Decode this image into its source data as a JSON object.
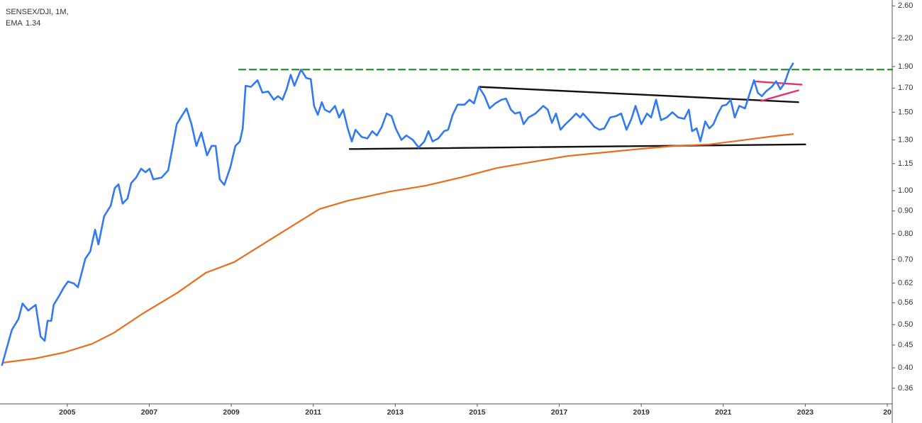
{
  "chart_data": {
    "type": "line",
    "title": "SENSEX/DJI, 1M,",
    "log_scale": true,
    "xlim": [
      2003.36,
      2025.12
    ],
    "ylim": [
      0.332,
      2.68
    ],
    "xticks": [
      2005,
      2007,
      2009,
      2011,
      2013,
      2015,
      2017,
      2019,
      2021,
      2023,
      {
        "value": 2025,
        "label": "20"
      }
    ],
    "yticks": [
      {
        "value": 2.6,
        "label": "2.60"
      },
      {
        "value": 2.2,
        "label": "2.20"
      },
      {
        "value": 1.9,
        "label": "1.90"
      },
      {
        "value": 1.7,
        "label": "1.70"
      },
      {
        "value": 1.5,
        "label": "1.50"
      },
      {
        "value": 1.3,
        "label": "1.30"
      },
      1.15,
      {
        "value": 1.0,
        "label": "1.00"
      },
      {
        "value": 0.9,
        "label": "0.90"
      },
      {
        "value": 0.8,
        "label": "0.80"
      },
      {
        "value": 0.7,
        "label": "0.70"
      },
      0.62,
      0.56,
      {
        "value": 0.5,
        "label": "0.50"
      },
      0.45,
      {
        "value": 0.4,
        "label": "0.40"
      },
      0.36
    ],
    "series": [
      {
        "color": "#3179f5",
        "x": [
          2003.41,
          2003.53,
          2003.65,
          2003.81,
          2003.91,
          2004.05,
          2004.23,
          2004.35,
          2004.45,
          2004.52,
          2004.61,
          2004.67,
          2004.8,
          2004.92,
          2005.02,
          2005.16,
          2005.26,
          2005.33,
          2005.44,
          2005.56,
          2005.68,
          2005.76,
          2005.9,
          2006.06,
          2006.16,
          2006.25,
          2006.35,
          2006.47,
          2006.56,
          2006.68,
          2006.8,
          2006.91,
          2007.01,
          2007.1,
          2007.3,
          2007.46,
          2007.56,
          2007.67,
          2007.77,
          2007.91,
          2008.03,
          2008.15,
          2008.27,
          2008.41,
          2008.52,
          2008.62,
          2008.72,
          2008.83,
          2008.98,
          2009.1,
          2009.21,
          2009.28,
          2009.35,
          2009.48,
          2009.64,
          2009.76,
          2009.9,
          2010.04,
          2010.14,
          2010.25,
          2010.35,
          2010.45,
          2010.54,
          2010.7,
          2010.83,
          2010.94,
          2011.02,
          2011.11,
          2011.21,
          2011.28,
          2011.4,
          2011.53,
          2011.63,
          2011.73,
          2011.84,
          2011.94,
          2012.03,
          2012.18,
          2012.32,
          2012.44,
          2012.55,
          2012.67,
          2012.79,
          2012.91,
          2013.01,
          2013.15,
          2013.27,
          2013.43,
          2013.57,
          2013.71,
          2013.81,
          2013.91,
          2014.05,
          2014.19,
          2014.29,
          2014.4,
          2014.52,
          2014.69,
          2014.81,
          2014.92,
          2015.04,
          2015.18,
          2015.3,
          2015.44,
          2015.59,
          2015.7,
          2015.82,
          2015.92,
          2016.04,
          2016.13,
          2016.25,
          2016.42,
          2016.61,
          2016.72,
          2016.82,
          2016.92,
          2017.03,
          2017.15,
          2017.29,
          2017.41,
          2017.51,
          2017.58,
          2017.72,
          2017.86,
          2017.98,
          2018.1,
          2018.24,
          2018.38,
          2018.51,
          2018.64,
          2018.76,
          2018.86,
          2019.0,
          2019.14,
          2019.24,
          2019.36,
          2019.48,
          2019.62,
          2019.76,
          2019.9,
          2020.05,
          2020.16,
          2020.24,
          2020.35,
          2020.44,
          2020.56,
          2020.66,
          2020.76,
          2020.87,
          2020.97,
          2021.08,
          2021.18,
          2021.28,
          2021.39,
          2021.53,
          2021.65,
          2021.75,
          2021.84,
          2021.94,
          2022.04,
          2022.18,
          2022.29,
          2022.39,
          2022.49,
          2022.6,
          2022.7
        ],
        "values": [
          0.406,
          0.445,
          0.487,
          0.515,
          0.558,
          0.538,
          0.554,
          0.47,
          0.46,
          0.51,
          0.51,
          0.554,
          0.58,
          0.607,
          0.625,
          0.619,
          0.607,
          0.642,
          0.703,
          0.73,
          0.817,
          0.757,
          0.876,
          0.925,
          1.014,
          1.033,
          0.935,
          0.96,
          1.04,
          1.07,
          1.12,
          1.1,
          1.12,
          1.06,
          1.07,
          1.11,
          1.24,
          1.41,
          1.46,
          1.53,
          1.41,
          1.26,
          1.35,
          1.2,
          1.26,
          1.26,
          1.06,
          1.03,
          1.13,
          1.26,
          1.29,
          1.38,
          1.72,
          1.71,
          1.77,
          1.66,
          1.67,
          1.6,
          1.63,
          1.6,
          1.69,
          1.82,
          1.72,
          1.87,
          1.79,
          1.78,
          1.55,
          1.48,
          1.58,
          1.52,
          1.5,
          1.55,
          1.46,
          1.52,
          1.38,
          1.29,
          1.37,
          1.32,
          1.31,
          1.36,
          1.33,
          1.39,
          1.49,
          1.47,
          1.38,
          1.3,
          1.33,
          1.3,
          1.25,
          1.29,
          1.36,
          1.29,
          1.31,
          1.36,
          1.37,
          1.48,
          1.56,
          1.56,
          1.6,
          1.57,
          1.71,
          1.63,
          1.53,
          1.57,
          1.6,
          1.61,
          1.52,
          1.49,
          1.5,
          1.41,
          1.46,
          1.49,
          1.55,
          1.52,
          1.42,
          1.49,
          1.37,
          1.41,
          1.45,
          1.49,
          1.46,
          1.49,
          1.44,
          1.39,
          1.37,
          1.38,
          1.46,
          1.47,
          1.49,
          1.37,
          1.45,
          1.55,
          1.41,
          1.49,
          1.46,
          1.6,
          1.44,
          1.46,
          1.5,
          1.46,
          1.45,
          1.52,
          1.36,
          1.38,
          1.29,
          1.43,
          1.38,
          1.41,
          1.49,
          1.55,
          1.56,
          1.6,
          1.46,
          1.55,
          1.53,
          1.66,
          1.77,
          1.66,
          1.63,
          1.67,
          1.71,
          1.76,
          1.69,
          1.74,
          1.86,
          1.93
        ]
      },
      {
        "name": "EMA",
        "color": "#ec6c1c",
        "x": [
          2003.45,
          2004.23,
          2004.92,
          2005.61,
          2006.13,
          2006.82,
          2007.69,
          2008.38,
          2009.07,
          2009.76,
          2010.45,
          2011.15,
          2011.84,
          2012.88,
          2013.74,
          2014.61,
          2015.47,
          2016.34,
          2017.2,
          2018.07,
          2018.93,
          2019.8,
          2020.66,
          2021.53,
          2022.22,
          2022.7
        ],
        "values": [
          0.411,
          0.42,
          0.433,
          0.453,
          0.479,
          0.528,
          0.59,
          0.654,
          0.691,
          0.757,
          0.829,
          0.909,
          0.949,
          0.996,
          1.026,
          1.071,
          1.124,
          1.16,
          1.196,
          1.218,
          1.24,
          1.26,
          1.27,
          1.3,
          1.325,
          1.34
        ]
      }
    ],
    "trendlines": [
      {
        "color": "#2e9a2e",
        "dashed": true,
        "x": [
          2009.19,
          2025.12
        ],
        "values": [
          1.87,
          1.87
        ]
      },
      {
        "color": "#111111",
        "dashed": false,
        "x": [
          2015.06,
          2022.83
        ],
        "values": [
          1.71,
          1.58
        ]
      },
      {
        "color": "#111111",
        "dashed": false,
        "x": [
          2011.89,
          2023.0
        ],
        "values": [
          1.24,
          1.27
        ]
      },
      {
        "color": "#e8306e",
        "dashed": false,
        "x": [
          2021.75,
          2022.91
        ],
        "values": [
          1.76,
          1.73
        ]
      },
      {
        "color": "#e8306e",
        "dashed": false,
        "x": [
          2021.92,
          2022.83
        ],
        "values": [
          1.59,
          1.68
        ]
      }
    ]
  }
}
